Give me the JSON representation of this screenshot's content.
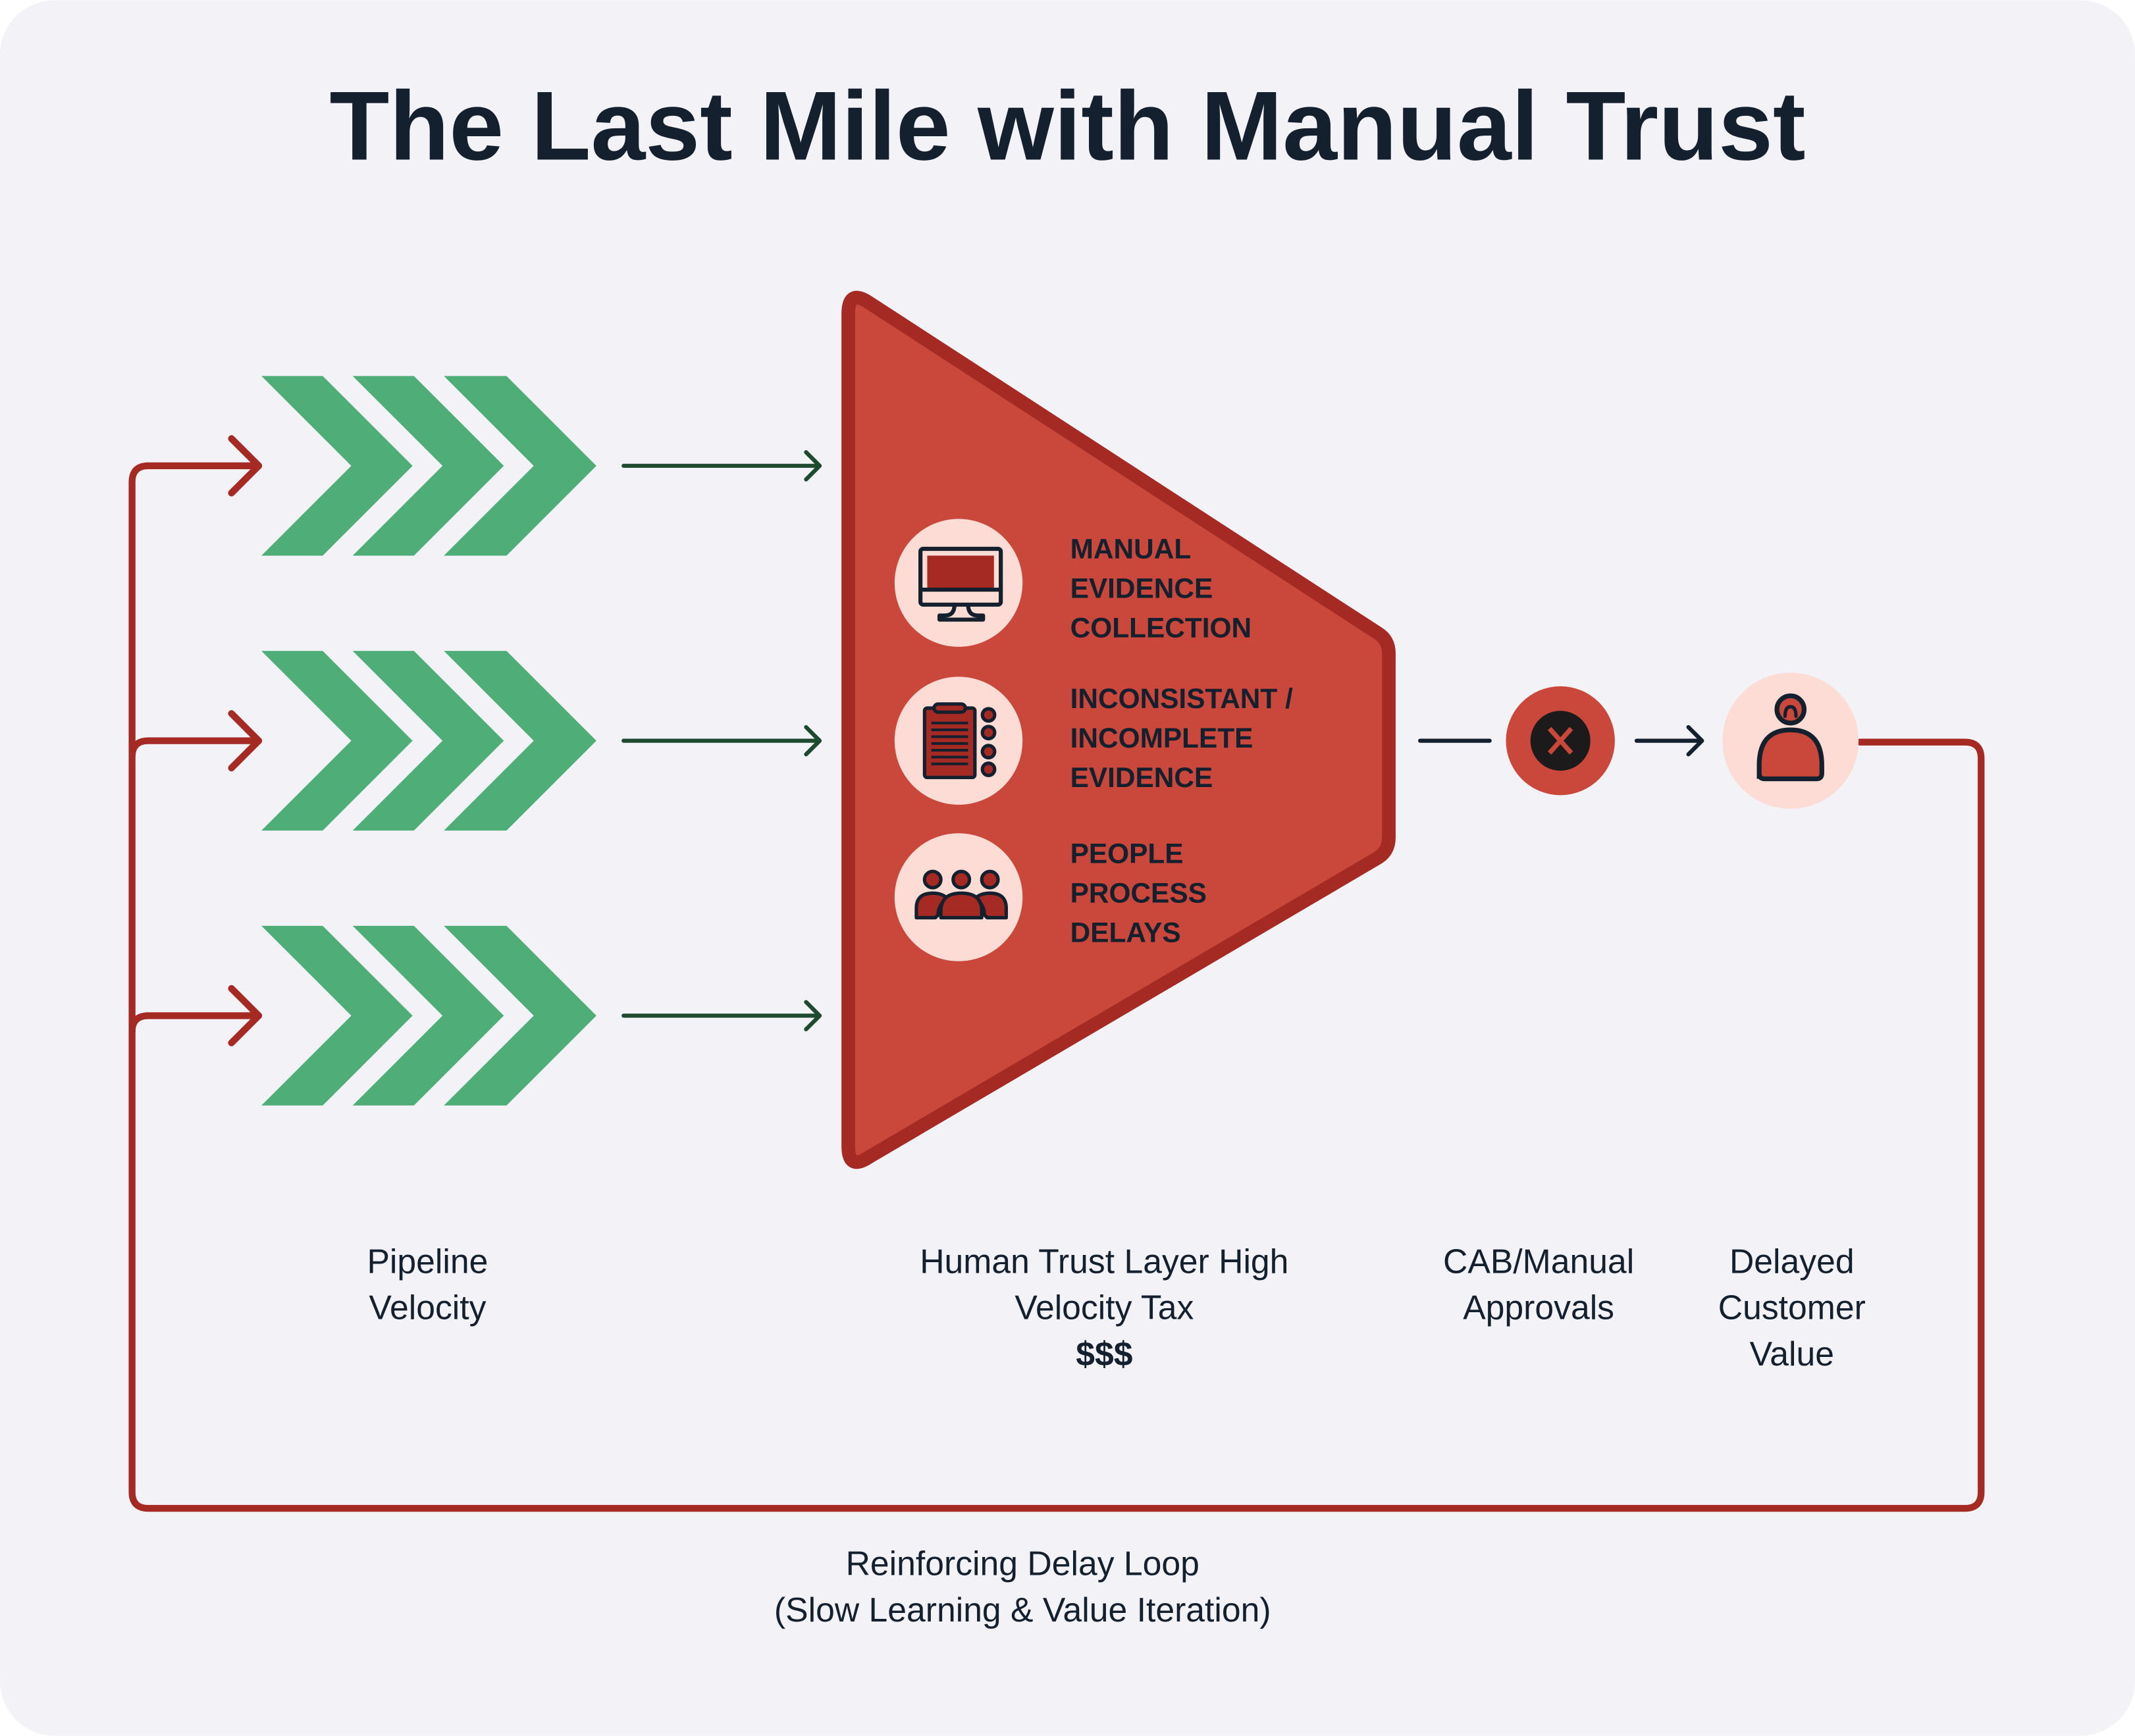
{
  "title": "The Last Mile with Manual Trust",
  "colors": {
    "background": "#f2f2f7",
    "chevron_green": "#4fad78",
    "flow_arrow_green": "#1e4a30",
    "funnel_fill": "#c9473b",
    "loop_red": "#a52a24",
    "icon_circle_pink": "#fddcd6",
    "text_dark": "#14202e"
  },
  "funnel_items": [
    {
      "icon": "monitor-icon",
      "lines": [
        "MANUAL",
        "EVIDENCE",
        "COLLECTION"
      ]
    },
    {
      "icon": "clipboard-checklist-icon",
      "lines": [
        "INCONSISTANT /",
        "INCOMPLETE",
        "EVIDENCE"
      ]
    },
    {
      "icon": "people-group-icon",
      "lines": [
        "PEOPLE",
        "PROCESS",
        "DELAYS"
      ]
    }
  ],
  "labels": {
    "pipeline": [
      "Pipeline",
      "Velocity"
    ],
    "trust_layer": [
      "Human Trust Layer High",
      "Velocity Tax",
      "$$$"
    ],
    "cab": [
      "CAB/Manual",
      "Approvals"
    ],
    "customer": [
      "Delayed",
      "Customer",
      "Value"
    ],
    "loop": [
      "Reinforcing Delay Loop",
      "(Slow Learning & Value Iteration)"
    ]
  },
  "icons": {
    "rejection": "x-circle-icon",
    "customer": "sad-person-icon"
  }
}
